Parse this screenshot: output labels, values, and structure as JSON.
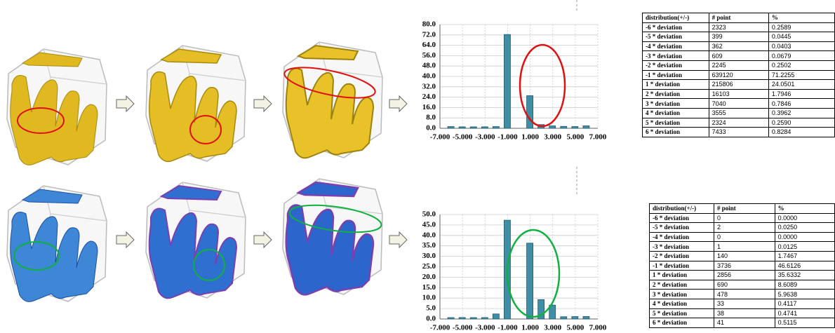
{
  "chart_data": [
    {
      "type": "bar",
      "x": [
        -6,
        -5,
        -4,
        -3,
        -2,
        -1,
        1,
        2,
        3,
        4,
        5,
        6
      ],
      "values": [
        0.2589,
        0.0445,
        0.0403,
        0.0679,
        0.2502,
        71.2255,
        24.0501,
        1.7946,
        0.7846,
        0.3962,
        0.259,
        0.8284
      ],
      "color": "#3f8ea6",
      "grid": true,
      "xlim": [
        -7,
        7
      ],
      "xticks": [
        {
          "value": -7,
          "label": "-7.000"
        },
        {
          "value": -5,
          "label": "-5.000"
        },
        {
          "value": -3,
          "label": "-3.000"
        },
        {
          "value": -1,
          "label": "-1.000"
        },
        {
          "value": 1,
          "label": "1.000"
        },
        {
          "value": 3,
          "label": "3.000"
        },
        {
          "value": 5,
          "label": "5.000"
        },
        {
          "value": 7,
          "label": "7.000"
        }
      ],
      "ylim": [
        0,
        80
      ],
      "yticks": [
        {
          "value": 0,
          "label": "0.0"
        },
        {
          "value": 8,
          "label": "8.0"
        },
        {
          "value": 16,
          "label": "16.0"
        },
        {
          "value": 24,
          "label": "24.0"
        },
        {
          "value": 32,
          "label": "32.0"
        },
        {
          "value": 40,
          "label": "40.0"
        },
        {
          "value": 48,
          "label": "48.0"
        },
        {
          "value": 56,
          "label": "56.0"
        },
        {
          "value": 64,
          "label": "64.0"
        },
        {
          "value": 72,
          "label": "72.0"
        },
        {
          "value": 80,
          "label": "80.0"
        }
      ]
    },
    {
      "type": "bar",
      "x": [
        -6,
        -5,
        -4,
        -3,
        -2,
        -1,
        1,
        2,
        3,
        4,
        5,
        6
      ],
      "values": [
        0,
        0.025,
        0,
        0.0125,
        1.7467,
        46.6126,
        35.6332,
        8.6089,
        5.9638,
        0.4117,
        0.4741,
        0.5115
      ],
      "color": "#3f8ea6",
      "grid": true,
      "xlim": [
        -7,
        7
      ],
      "xticks": [
        {
          "value": -7,
          "label": "-7.000"
        },
        {
          "value": -5,
          "label": "-5.000"
        },
        {
          "value": -3,
          "label": "-3.000"
        },
        {
          "value": -1,
          "label": "-1.000"
        },
        {
          "value": 1,
          "label": "1.000"
        },
        {
          "value": 3,
          "label": "3.000"
        },
        {
          "value": 5,
          "label": "5.000"
        },
        {
          "value": 7,
          "label": "7.000"
        }
      ],
      "ylim": [
        0,
        50
      ],
      "yticks": [
        {
          "value": 0,
          "label": "0.0"
        },
        {
          "value": 5,
          "label": "5.0"
        },
        {
          "value": 10,
          "label": "10.0"
        },
        {
          "value": 15,
          "label": "15.0"
        },
        {
          "value": 20,
          "label": "20.0"
        },
        {
          "value": 25,
          "label": "25.0"
        },
        {
          "value": 30,
          "label": "30.0"
        },
        {
          "value": 35,
          "label": "35.0"
        },
        {
          "value": 40,
          "label": "40.0"
        },
        {
          "value": 45,
          "label": "45.0"
        },
        {
          "value": 50,
          "label": "50.0"
        }
      ]
    }
  ],
  "tables": [
    {
      "header": [
        "distribution(+/-)",
        "# point",
        "%"
      ],
      "rows": [
        [
          "-6 * deviation",
          "2323",
          "0.2589"
        ],
        [
          "-5 * deviation",
          "399",
          "0.0445"
        ],
        [
          "-4 * deviation",
          "362",
          "0.0403"
        ],
        [
          "-3 * deviation",
          "609",
          "0.0679"
        ],
        [
          "-2 * deviation",
          "2245",
          "0.2502"
        ],
        [
          "-1 * deviation",
          "639120",
          "71.2255"
        ],
        [
          "1 * deviation",
          "215806",
          "24.0501"
        ],
        [
          "2 * deviation",
          "16103",
          "1.7946"
        ],
        [
          "3 * deviation",
          "7040",
          "0.7846"
        ],
        [
          "4 * deviation",
          "3555",
          "0.3962"
        ],
        [
          "5 * deviation",
          "2324",
          "0.2590"
        ],
        [
          "6 * deviation",
          "7433",
          "0.8284"
        ]
      ]
    },
    {
      "header": [
        "distribution(+/-)",
        "# point",
        "%"
      ],
      "rows": [
        [
          "-6 * deviation",
          "0",
          "0.0000"
        ],
        [
          "-5 * deviation",
          "2",
          "0.0250"
        ],
        [
          "-4 * deviation",
          "0",
          "0.0000"
        ],
        [
          "-3 * deviation",
          "1",
          "0.0125"
        ],
        [
          "-2 * deviation",
          "140",
          "1.7467"
        ],
        [
          "-1 * deviation",
          "3736",
          "46.6126"
        ],
        [
          "1 * deviation",
          "2856",
          "35.6332"
        ],
        [
          "2 * deviation",
          "690",
          "8.6089"
        ],
        [
          "3 * deviation",
          "478",
          "5.9638"
        ],
        [
          "4 * deviation",
          "33",
          "0.4117"
        ],
        [
          "5 * deviation",
          "38",
          "0.4741"
        ],
        [
          "6 * deviation",
          "41",
          "0.5115"
        ]
      ]
    }
  ]
}
